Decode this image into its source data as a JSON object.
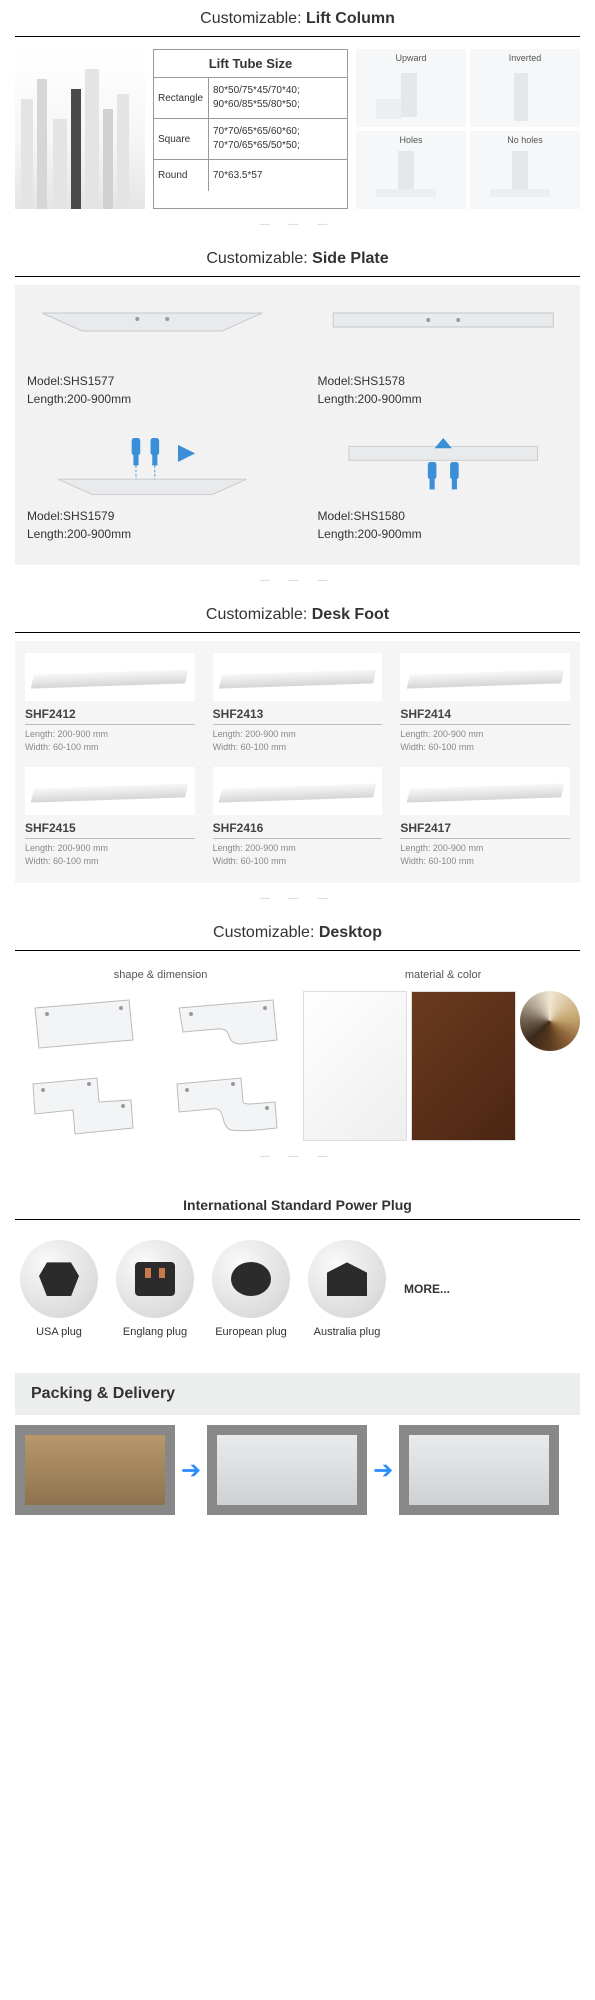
{
  "sections": {
    "lift_column": {
      "prefix": "Customizable:",
      "title": "Lift Column"
    },
    "side_plate": {
      "prefix": "Customizable:",
      "title": "Side Plate"
    },
    "desk_foot": {
      "prefix": "Customizable:",
      "title": "Desk Foot"
    },
    "desktop": {
      "prefix": "Customizable:",
      "title": "Desktop"
    },
    "power_plug": {
      "title": "International Standard Power Plug"
    },
    "packing": {
      "title": "Packing & Delivery"
    }
  },
  "lift_tube": {
    "header": "Lift Tube Size",
    "rows": [
      {
        "shape": "Rectangle",
        "sizes": "80*50/75*45/70*40;\n90*60/85*55/80*50;"
      },
      {
        "shape": "Square",
        "sizes": "70*70/65*65/60*60;\n70*70/65*65/50*50;"
      },
      {
        "shape": "Round",
        "sizes": "70*63.5*57"
      }
    ]
  },
  "orient": [
    "Upward",
    "Inverted",
    "Holes",
    "No holes"
  ],
  "side_plates": [
    {
      "model": "Model:SHS1577",
      "length": "Length:200-900mm",
      "shape": "taper-down",
      "bolts": false
    },
    {
      "model": "Model:SHS1578",
      "length": "Length:200-900mm",
      "shape": "flat",
      "bolts": false
    },
    {
      "model": "Model:SHS1579",
      "length": "Length:200-900mm",
      "shape": "taper-down",
      "bolts": true
    },
    {
      "model": "Model:SHS1580",
      "length": "Length:200-900mm",
      "shape": "flat",
      "bolts": true
    }
  ],
  "desk_feet": [
    {
      "name": "SHF2412",
      "length": "Length: 200-900 mm",
      "width": "Width: 60-100 mm"
    },
    {
      "name": "SHF2413",
      "length": "Length: 200-900 mm",
      "width": "Width: 60-100 mm"
    },
    {
      "name": "SHF2414",
      "length": "Length: 200-900 mm",
      "width": "Width: 60-100 mm"
    },
    {
      "name": "SHF2415",
      "length": "Length: 200-900 mm",
      "width": "Width: 60-100 mm"
    },
    {
      "name": "SHF2416",
      "length": "Length: 200-900 mm",
      "width": "Width: 60-100 mm"
    },
    {
      "name": "SHF2417",
      "length": "Length: 200-900 mm",
      "width": "Width: 60-100 mm"
    }
  ],
  "desktop": {
    "hdr1": "shape & dimension",
    "hdr2": "material & color"
  },
  "plugs": [
    {
      "label": "USA plug"
    },
    {
      "label": "Englang plug"
    },
    {
      "label": "European plug"
    },
    {
      "label": "Australia plug"
    }
  ],
  "plugs_more": "MORE...",
  "colors": {
    "bolt": "#3b8fd8",
    "arrow": "#2b8cff",
    "plate": "#e8eaec",
    "plate_edge": "#c5c8cc"
  }
}
